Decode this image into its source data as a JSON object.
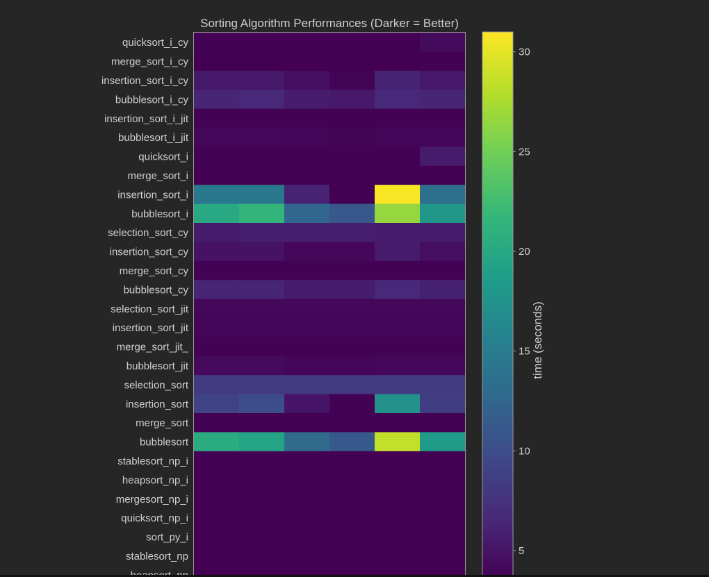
{
  "colors": {
    "background": "#262626",
    "text": "#d0d0d0",
    "frame": "#9a9a9a",
    "colormap": [
      "#440154",
      "#482878",
      "#3e4989",
      "#31688e",
      "#26828e",
      "#1f9e89",
      "#35b779",
      "#6ece58",
      "#b5de2b",
      "#fde725"
    ]
  },
  "chart_data": {
    "type": "heatmap",
    "title": "Sorting Algorithm Performances (Darker = Better)",
    "rows": [
      "quicksort_i_cy",
      "merge_sort_i_cy",
      "insertion_sort_i_cy",
      "bubblesort_i_cy",
      "insertion_sort_i_jit",
      "bubblesort_i_jit",
      "quicksort_i",
      "merge_sort_i",
      "insertion_sort_i",
      "bubblesort_i",
      "selection_sort_cy",
      "insertion_sort_cy",
      "merge_sort_cy",
      "bubblesort_cy",
      "selection_sort_jit",
      "insertion_sort_jit",
      "merge_sort_jit_",
      "bubblesort_jit",
      "selection_sort",
      "insertion_sort",
      "merge_sort",
      "bubblesort",
      "stablesort_np_i",
      "heapsort_np_i",
      "mergesort_np_i",
      "quicksort_np_i",
      "sort_py_i",
      "stablesort_np",
      "heapsort_np"
    ],
    "n_columns": 6,
    "values": [
      [
        3.6,
        3.6,
        3.6,
        3.6,
        3.6,
        4.3
      ],
      [
        3.5,
        3.5,
        3.5,
        3.5,
        3.5,
        3.6
      ],
      [
        5.3,
        5.3,
        4.5,
        3.7,
        6.2,
        5.3
      ],
      [
        6.3,
        6.6,
        5.6,
        5.4,
        6.6,
        6.3
      ],
      [
        3.6,
        3.6,
        3.6,
        3.6,
        3.6,
        3.6
      ],
      [
        4.0,
        4.0,
        3.9,
        3.7,
        3.9,
        3.9
      ],
      [
        3.6,
        3.6,
        3.6,
        3.6,
        3.6,
        5.5
      ],
      [
        3.5,
        3.5,
        3.5,
        3.5,
        3.5,
        3.5
      ],
      [
        14.5,
        14.5,
        6.2,
        3.5,
        30.8,
        13.5
      ],
      [
        20.0,
        21.5,
        12.6,
        11.0,
        26.6,
        18.0
      ],
      [
        5.5,
        5.8,
        5.8,
        5.8,
        5.6,
        5.6
      ],
      [
        4.9,
        4.9,
        4.0,
        4.0,
        5.5,
        4.5
      ],
      [
        3.6,
        3.6,
        3.6,
        3.6,
        3.6,
        3.6
      ],
      [
        6.3,
        6.3,
        5.6,
        5.6,
        6.6,
        6.0
      ],
      [
        4.0,
        4.0,
        4.0,
        4.0,
        4.0,
        4.0
      ],
      [
        3.8,
        3.8,
        3.8,
        3.8,
        3.8,
        3.8
      ],
      [
        3.6,
        3.6,
        3.6,
        3.6,
        3.6,
        3.6
      ],
      [
        4.2,
        4.2,
        3.9,
        3.9,
        4.0,
        4.0
      ],
      [
        8.3,
        8.2,
        8.1,
        8.1,
        8.3,
        8.3
      ],
      [
        9.0,
        10.0,
        5.0,
        3.6,
        17.5,
        8.5
      ],
      [
        3.6,
        3.6,
        3.6,
        3.6,
        3.6,
        3.6
      ],
      [
        20.5,
        19.5,
        13.0,
        11.2,
        28.5,
        18.5
      ],
      [
        3.5,
        3.5,
        3.5,
        3.5,
        3.5,
        3.5
      ],
      [
        3.5,
        3.5,
        3.5,
        3.5,
        3.5,
        3.5
      ],
      [
        3.5,
        3.5,
        3.5,
        3.5,
        3.5,
        3.5
      ],
      [
        3.5,
        3.5,
        3.5,
        3.5,
        3.5,
        3.5
      ],
      [
        3.5,
        3.5,
        3.5,
        3.5,
        3.5,
        3.5
      ],
      [
        3.5,
        3.5,
        3.5,
        3.5,
        3.5,
        3.5
      ],
      [
        3.5,
        3.5,
        3.5,
        3.5,
        3.5,
        3.5
      ]
    ],
    "colorbar": {
      "label": "time (seconds)",
      "min": 3.5,
      "max": 31,
      "ticks": [
        5,
        10,
        15,
        20,
        25,
        30
      ]
    }
  }
}
